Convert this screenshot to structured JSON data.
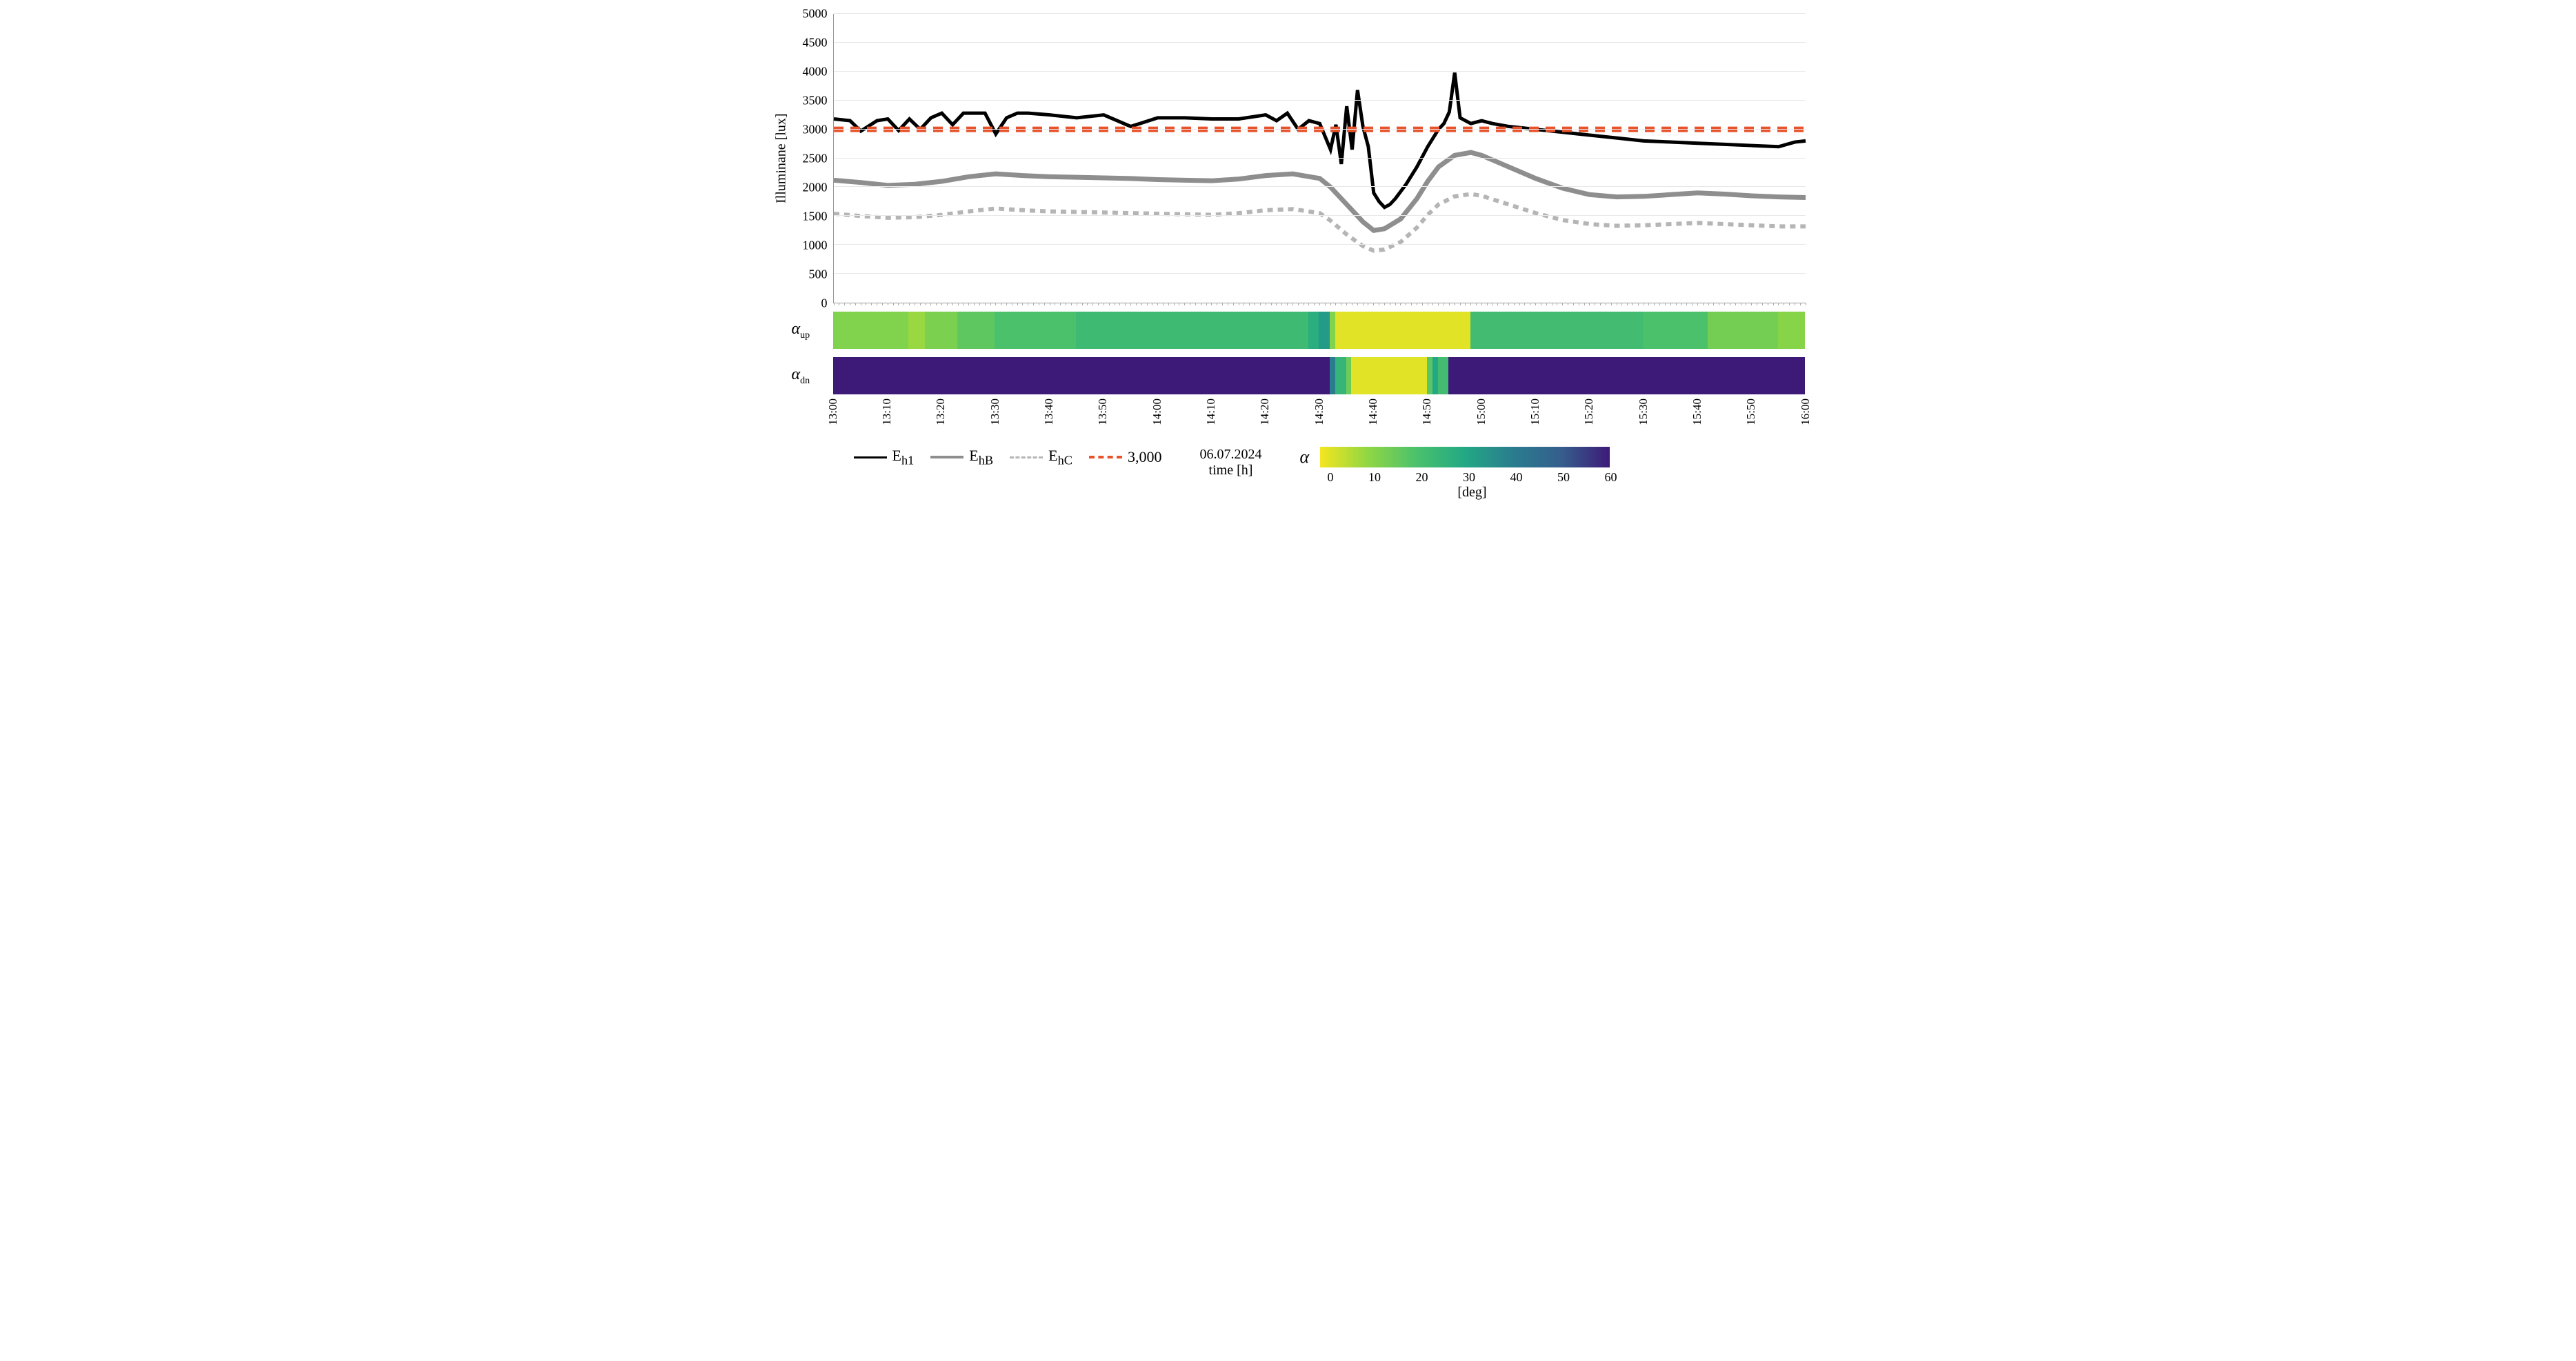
{
  "chart": {
    "type": "line",
    "y_axis": {
      "label": "Illuminane [lux]",
      "min": 0,
      "max": 5000,
      "tick_step": 500,
      "ticks": [
        0,
        500,
        1000,
        1500,
        2000,
        2500,
        3000,
        3500,
        4000,
        4500,
        5000
      ],
      "label_fontsize": 20,
      "tick_fontsize": 18
    },
    "x_axis": {
      "label": "time [h]",
      "date": "06.07.2024",
      "ticks": [
        "13:00",
        "13:10",
        "13:20",
        "13:30",
        "13:40",
        "13:50",
        "14:00",
        "14:10",
        "14:20",
        "14:30",
        "14:40",
        "14:50",
        "15:00",
        "15:10",
        "15:20",
        "15:30",
        "15:40",
        "15:50",
        "16:00"
      ],
      "tick_positions_minutes": [
        0,
        10,
        20,
        30,
        40,
        50,
        60,
        70,
        80,
        90,
        100,
        110,
        120,
        130,
        140,
        150,
        160,
        170,
        180
      ],
      "range_minutes": 180,
      "minor_tick_minutes": 1
    },
    "grid_color": "#e8e8e8",
    "background_color": "#ffffff",
    "series": [
      {
        "name": "E_h1",
        "label_html": "E<sub>h1</sub>",
        "color": "#000000",
        "width": 2.5,
        "dash": "none",
        "data_minutes": [
          0,
          3,
          5,
          8,
          10,
          12,
          14,
          16,
          18,
          20,
          22,
          24,
          26,
          28,
          30,
          32,
          34,
          36,
          40,
          45,
          50,
          55,
          60,
          65,
          70,
          75,
          80,
          82,
          84,
          86,
          88,
          90,
          92,
          93,
          94,
          95,
          96,
          97,
          98,
          99,
          100,
          101,
          102,
          103,
          104,
          106,
          108,
          110,
          112,
          113,
          114,
          115,
          116,
          117,
          118,
          120,
          122,
          125,
          130,
          135,
          140,
          145,
          150,
          155,
          160,
          165,
          170,
          175,
          178,
          180
        ],
        "data_values": [
          3180,
          3150,
          2970,
          3150,
          3180,
          2980,
          3180,
          3000,
          3200,
          3280,
          3080,
          3280,
          3280,
          3280,
          2920,
          3200,
          3280,
          3280,
          3250,
          3200,
          3250,
          3050,
          3200,
          3200,
          3180,
          3180,
          3250,
          3150,
          3280,
          3000,
          3150,
          3100,
          2650,
          3080,
          2400,
          3400,
          2650,
          3680,
          3050,
          2700,
          1900,
          1750,
          1650,
          1700,
          1800,
          2050,
          2350,
          2700,
          3000,
          3100,
          3300,
          3980,
          3200,
          3150,
          3100,
          3150,
          3100,
          3050,
          3000,
          2950,
          2900,
          2850,
          2800,
          2780,
          2760,
          2740,
          2720,
          2700,
          2780,
          2800
        ]
      },
      {
        "name": "E_hB",
        "label_html": "E<sub>hB</sub>",
        "color": "#8e8e8e",
        "width": 3.5,
        "dash": "none",
        "data_minutes": [
          0,
          5,
          10,
          15,
          20,
          25,
          30,
          35,
          40,
          45,
          50,
          55,
          60,
          65,
          70,
          75,
          80,
          85,
          90,
          92,
          95,
          98,
          100,
          102,
          105,
          108,
          110,
          112,
          115,
          118,
          120,
          125,
          130,
          135,
          140,
          145,
          150,
          155,
          160,
          165,
          170,
          175,
          180
        ],
        "data_values": [
          2120,
          2080,
          2030,
          2050,
          2100,
          2180,
          2230,
          2200,
          2180,
          2170,
          2160,
          2150,
          2130,
          2120,
          2110,
          2140,
          2200,
          2230,
          2150,
          2000,
          1700,
          1400,
          1250,
          1280,
          1450,
          1800,
          2100,
          2350,
          2550,
          2600,
          2550,
          2350,
          2150,
          1980,
          1870,
          1830,
          1840,
          1870,
          1900,
          1880,
          1850,
          1830,
          1820
        ]
      },
      {
        "name": "E_hC",
        "label_html": "E<sub>hC</sub>",
        "color": "#b5b5b5",
        "width": 3,
        "dash": "8,7",
        "data_minutes": [
          0,
          5,
          10,
          15,
          20,
          25,
          30,
          35,
          40,
          45,
          50,
          55,
          60,
          65,
          70,
          75,
          80,
          85,
          90,
          92,
          95,
          98,
          100,
          102,
          105,
          108,
          110,
          112,
          115,
          118,
          120,
          125,
          130,
          135,
          140,
          145,
          150,
          155,
          160,
          165,
          170,
          175,
          180
        ],
        "data_values": [
          1540,
          1500,
          1470,
          1480,
          1520,
          1580,
          1630,
          1600,
          1580,
          1570,
          1560,
          1550,
          1540,
          1530,
          1520,
          1550,
          1600,
          1620,
          1550,
          1420,
          1180,
          980,
          900,
          920,
          1050,
          1300,
          1520,
          1700,
          1840,
          1880,
          1850,
          1700,
          1550,
          1430,
          1360,
          1330,
          1340,
          1360,
          1380,
          1360,
          1340,
          1320,
          1320
        ]
      },
      {
        "name": "ref3000",
        "label_html": "3,000",
        "color": "#e8532c",
        "width": 4,
        "dash": "14,10",
        "data_minutes": [
          0,
          180
        ],
        "data_values": [
          3000,
          3000
        ]
      }
    ],
    "legend": [
      {
        "swatch_color": "#000000",
        "swatch_width": 3,
        "swatch_dash": "none",
        "label_html": "E<sub>h1</sub>"
      },
      {
        "swatch_color": "#8e8e8e",
        "swatch_width": 4,
        "swatch_dash": "none",
        "label_html": "E<sub>hB</sub>"
      },
      {
        "swatch_color": "#b5b5b5",
        "swatch_width": 3,
        "swatch_dash": "dashed",
        "label_html": "E<sub>hC</sub>"
      },
      {
        "swatch_color": "#e8532c",
        "swatch_width": 4,
        "swatch_dash": "dashed",
        "label_html": "3,000"
      }
    ]
  },
  "heatmaps": {
    "color_scale": {
      "domain": [
        0,
        60
      ],
      "ticks": [
        0,
        10,
        20,
        30,
        40,
        50,
        60
      ],
      "unit": "[deg]",
      "label": "α",
      "stops": [
        {
          "v": 0,
          "c": "#f4e61e"
        },
        {
          "v": 10,
          "c": "#8fd644"
        },
        {
          "v": 20,
          "c": "#4bc16c"
        },
        {
          "v": 30,
          "c": "#22a884"
        },
        {
          "v": 40,
          "c": "#2a7c8e"
        },
        {
          "v": 50,
          "c": "#355e8d"
        },
        {
          "v": 60,
          "c": "#3e1a78"
        }
      ]
    },
    "rows": [
      {
        "name": "alpha_up",
        "label_html": "<i>α</i><sub>up</sub>",
        "segments": [
          {
            "start": 0,
            "end": 14,
            "value": 12
          },
          {
            "start": 14,
            "end": 17,
            "value": 9
          },
          {
            "start": 17,
            "end": 23,
            "value": 13
          },
          {
            "start": 23,
            "end": 30,
            "value": 17
          },
          {
            "start": 30,
            "end": 45,
            "value": 20
          },
          {
            "start": 45,
            "end": 88,
            "value": 23
          },
          {
            "start": 88,
            "end": 90,
            "value": 28
          },
          {
            "start": 90,
            "end": 92,
            "value": 33
          },
          {
            "start": 92,
            "end": 93,
            "value": 12
          },
          {
            "start": 93,
            "end": 94,
            "value": 2
          },
          {
            "start": 94,
            "end": 118,
            "value": 2
          },
          {
            "start": 118,
            "end": 150,
            "value": 22
          },
          {
            "start": 150,
            "end": 162,
            "value": 20
          },
          {
            "start": 162,
            "end": 175,
            "value": 14
          },
          {
            "start": 175,
            "end": 180,
            "value": 11
          }
        ]
      },
      {
        "name": "alpha_dn",
        "label_html": "<i>α</i><sub>dn</sub>",
        "segments": [
          {
            "start": 0,
            "end": 92,
            "value": 60
          },
          {
            "start": 92,
            "end": 93,
            "value": 40
          },
          {
            "start": 93,
            "end": 95,
            "value": 25
          },
          {
            "start": 95,
            "end": 96,
            "value": 15
          },
          {
            "start": 96,
            "end": 110,
            "value": 2
          },
          {
            "start": 110,
            "end": 111,
            "value": 18
          },
          {
            "start": 111,
            "end": 112,
            "value": 30
          },
          {
            "start": 112,
            "end": 114,
            "value": 22
          },
          {
            "start": 114,
            "end": 180,
            "value": 60
          }
        ]
      }
    ]
  }
}
